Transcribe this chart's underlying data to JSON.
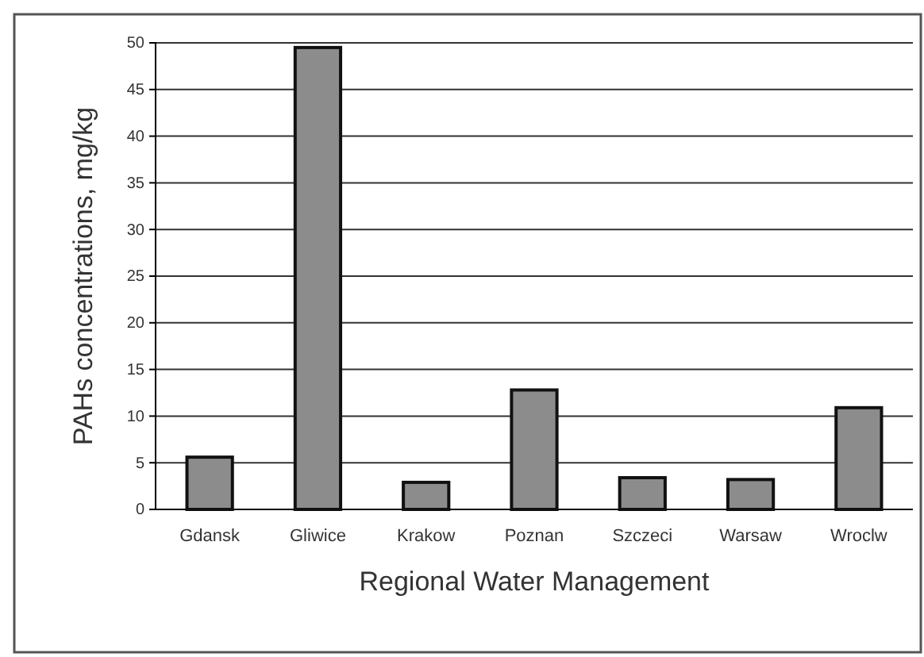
{
  "chart_data": {
    "type": "bar",
    "xlabel": "Regional Water Management",
    "ylabel": "PAHs concentrations, mg/kg",
    "categories": [
      "Gdansk",
      "Gliwice",
      "Krakow",
      "Poznan",
      "Szczeci",
      "Warsaw",
      "Wroclw"
    ],
    "values": [
      5.6,
      49.5,
      2.9,
      12.8,
      3.4,
      3.2,
      10.9
    ],
    "color": "#8c8c8c",
    "ylim": [
      0,
      50
    ],
    "yticks": [
      0,
      5,
      10,
      15,
      20,
      25,
      30,
      35,
      40,
      45,
      50
    ],
    "grid": "y"
  }
}
